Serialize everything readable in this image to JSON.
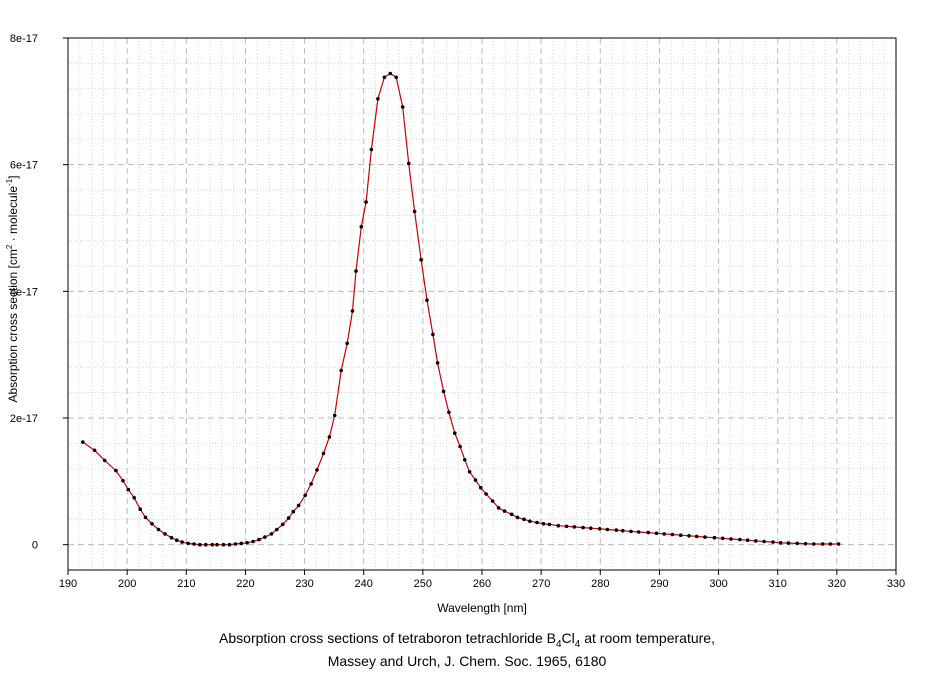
{
  "chart_data": {
    "type": "line",
    "xlabel": "Wavelength [nm]",
    "ylabel_main": "Absorption cross section [cm",
    "ylabel_sup1": "2",
    "ylabel_mid": " · molecule",
    "ylabel_sup2": "-1",
    "ylabel_end": "]",
    "xlim": [
      190,
      330
    ],
    "ylim": [
      -4e-18,
      8e-17
    ],
    "x_ticks": [
      190,
      200,
      210,
      220,
      230,
      240,
      250,
      260,
      270,
      280,
      290,
      300,
      310,
      320,
      330
    ],
    "x_tick_labels": [
      "190",
      "200",
      "210",
      "220",
      "230",
      "240",
      "250",
      "260",
      "270",
      "280",
      "290",
      "300",
      "310",
      "320",
      "330"
    ],
    "y_ticks": [
      0,
      2e-17,
      4e-17,
      6e-17,
      8e-17
    ],
    "y_tick_labels": [
      "0",
      "2e-17",
      "4e-17",
      "6e-17",
      "8e-17"
    ],
    "grid": true,
    "colors": {
      "line": "#cc0000",
      "marker": "#000000",
      "grid_major": "#bbbbbb",
      "grid_minor": "#d6d6d6"
    },
    "series": [
      {
        "x": [
          192.5,
          194.5,
          196.2,
          198.1,
          199.3,
          200.2,
          201.2,
          202.2,
          203.1,
          204.2,
          205.3,
          206.4,
          207.5,
          208.4,
          209.3,
          210.3,
          211.3,
          212.3,
          213.3,
          214.4,
          215.2,
          216.3,
          217.3,
          218.3,
          219.3,
          220.3,
          221.3,
          222.3,
          223.3,
          224.4,
          225.3,
          226.3,
          227.3,
          228.1,
          229.0,
          230.1,
          231.1,
          232.1,
          233.2,
          234.2,
          235.1,
          236.2,
          237.2,
          238.1,
          238.7,
          239.6,
          240.4,
          241.3,
          242.4,
          243.5,
          244.5,
          245.5,
          246.6,
          247.6,
          248.6,
          249.7,
          250.7,
          251.7,
          252.5,
          253.5,
          254.4,
          255.4,
          256.3,
          257.1,
          257.9,
          258.9,
          259.8,
          260.7,
          261.8,
          262.8,
          263.8,
          265.0,
          266.0,
          267.1,
          268.1,
          269.3,
          270.4,
          271.4,
          272.9,
          274.3,
          275.6,
          277.1,
          278.4,
          279.9,
          281.2,
          282.7,
          283.8,
          285.2,
          286.5,
          288.1,
          289.5,
          290.8,
          292.2,
          293.6,
          295.0,
          296.3,
          297.7,
          299.3,
          300.7,
          302.1,
          303.6,
          304.9,
          306.3,
          307.7,
          309.2,
          310.5,
          311.8,
          313.3,
          314.7,
          316.1,
          317.6,
          318.9,
          320.3
        ],
        "y": [
          1.62e-17,
          1.49e-17,
          1.33e-17,
          1.17e-17,
          1.01e-17,
          8.7e-18,
          7.4e-18,
          5.6e-18,
          4.3e-18,
          3.3e-18,
          2.4e-18,
          1.7e-18,
          1.1e-18,
          7e-19,
          4e-19,
          2e-19,
          1e-19,
          0,
          0,
          0,
          0,
          0,
          0,
          1e-19,
          2e-19,
          3e-19,
          5e-19,
          8e-19,
          1.2e-18,
          1.7e-18,
          2.4e-18,
          3.2e-18,
          4.2e-18,
          5.2e-18,
          6.2e-18,
          7.8e-18,
          9.6e-18,
          1.18e-17,
          1.44e-17,
          1.7e-17,
          2.04e-17,
          2.75e-17,
          3.18e-17,
          3.69e-17,
          4.32e-17,
          5.02e-17,
          5.41e-17,
          6.24e-17,
          7.04e-17,
          7.38e-17,
          7.44e-17,
          7.38e-17,
          6.91e-17,
          6.02e-17,
          5.26e-17,
          4.5e-17,
          3.86e-17,
          3.32e-17,
          2.87e-17,
          2.42e-17,
          2.09e-17,
          1.76e-17,
          1.55e-17,
          1.34e-17,
          1.15e-17,
          1.02e-17,
          9e-18,
          8e-18,
          6.9e-18,
          5.8e-18,
          5.3e-18,
          4.8e-18,
          4.3e-18,
          4e-18,
          3.7e-18,
          3.5e-18,
          3.3e-18,
          3.2e-18,
          3e-18,
          2.9e-18,
          2.8e-18,
          2.7e-18,
          2.6e-18,
          2.5e-18,
          2.4e-18,
          2.3e-18,
          2.2e-18,
          2.1e-18,
          2e-18,
          1.9e-18,
          1.8e-18,
          1.7e-18,
          1.6e-18,
          1.5e-18,
          1.4e-18,
          1.3e-18,
          1.2e-18,
          1.1e-18,
          1e-18,
          9e-19,
          8e-19,
          7e-19,
          6e-19,
          5e-19,
          4e-19,
          3e-19,
          2.5e-19,
          2e-19,
          1.5e-19,
          1e-19,
          1e-19,
          1e-19,
          1e-19
        ]
      }
    ]
  },
  "caption": {
    "line1_pre": "Absorption cross sections of tetraboron tetrachloride B",
    "line1_sub1": "4",
    "line1_mid": "Cl",
    "line1_sub2": "4",
    "line1_post": " at room temperature,",
    "line2": "Massey and Urch, J. Chem. Soc. 1965, 6180"
  }
}
